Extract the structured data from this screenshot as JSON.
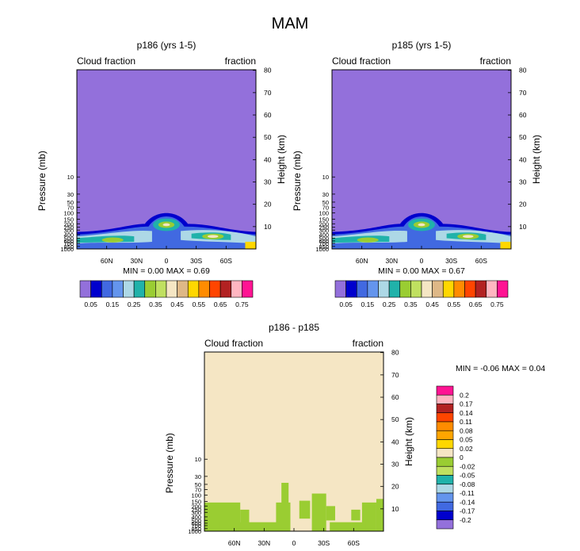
{
  "figure_title": "MAM",
  "colors": {
    "background_top": "#9370DB",
    "background_diff": "#F5E6C4",
    "diff_patch": "#9ACD32",
    "frame": "#000000"
  },
  "chart_data": [
    {
      "type": "contour",
      "title": "p186 (yrs 1-5)",
      "left_string": "Cloud fraction",
      "right_string": "fraction",
      "ylabel": "Pressure (mb)",
      "ylabel_right": "Height (km)",
      "x_ticks": [
        "60N",
        "30N",
        "0",
        "30S",
        "60S"
      ],
      "x_tick_lats": [
        60,
        30,
        0,
        -30,
        -60
      ],
      "xlim": [
        90,
        -90
      ],
      "pressure_ticks": [
        "10",
        "30",
        "50",
        "70",
        "100",
        "150",
        "200",
        "250",
        "300",
        "400",
        "500",
        "600",
        "700",
        "850",
        "1000"
      ],
      "pressure_values": [
        10,
        30,
        50,
        70,
        100,
        150,
        200,
        250,
        300,
        400,
        500,
        600,
        700,
        850,
        1000
      ],
      "height_ticks": [
        "10",
        "20",
        "30",
        "40",
        "50",
        "60",
        "70",
        "80"
      ],
      "height_values": [
        10,
        20,
        30,
        40,
        50,
        60,
        70,
        80
      ],
      "stats_text": "MIN =   0.00   MAX =   0.69",
      "min": 0.0,
      "max": 0.69,
      "colorbar": {
        "labels": [
          "0.05",
          "0.15",
          "0.25",
          "0.35",
          "0.45",
          "0.55",
          "0.65",
          "0.75"
        ],
        "colors": [
          "#9370DB",
          "#0000CD",
          "#4169E1",
          "#6495ED",
          "#ADD8E6",
          "#20B2AA",
          "#9ACD32",
          "#C0E060",
          "#F5E6C4",
          "#DEB887",
          "#FFD700",
          "#FF8C00",
          "#FF4500",
          "#B22222",
          "#FFB6C1",
          "#FF1493"
        ]
      }
    },
    {
      "type": "contour",
      "title": "p185 (yrs 1-5)",
      "left_string": "Cloud fraction",
      "right_string": "fraction",
      "ylabel": "Pressure (mb)",
      "ylabel_right": "Height (km)",
      "x_ticks": [
        "60N",
        "30N",
        "0",
        "30S",
        "60S"
      ],
      "x_tick_lats": [
        60,
        30,
        0,
        -30,
        -60
      ],
      "xlim": [
        90,
        -90
      ],
      "pressure_ticks": [
        "10",
        "30",
        "50",
        "70",
        "100",
        "150",
        "200",
        "250",
        "300",
        "400",
        "500",
        "600",
        "700",
        "850",
        "1000"
      ],
      "pressure_values": [
        10,
        30,
        50,
        70,
        100,
        150,
        200,
        250,
        300,
        400,
        500,
        600,
        700,
        850,
        1000
      ],
      "height_ticks": [
        "10",
        "20",
        "30",
        "40",
        "50",
        "60",
        "70",
        "80"
      ],
      "height_values": [
        10,
        20,
        30,
        40,
        50,
        60,
        70,
        80
      ],
      "stats_text": "MIN =   0.00   MAX =   0.67",
      "min": 0.0,
      "max": 0.67,
      "colorbar": {
        "labels": [
          "0.05",
          "0.15",
          "0.25",
          "0.35",
          "0.45",
          "0.55",
          "0.65",
          "0.75"
        ],
        "colors": [
          "#9370DB",
          "#0000CD",
          "#4169E1",
          "#6495ED",
          "#ADD8E6",
          "#20B2AA",
          "#9ACD32",
          "#C0E060",
          "#F5E6C4",
          "#DEB887",
          "#FFD700",
          "#FF8C00",
          "#FF4500",
          "#B22222",
          "#FFB6C1",
          "#FF1493"
        ]
      }
    },
    {
      "type": "contour",
      "title": "p186 - p185",
      "left_string": "Cloud fraction",
      "right_string": "fraction",
      "ylabel": "Pressure (mb)",
      "ylabel_right": "Height (km)",
      "x_ticks": [
        "60N",
        "30N",
        "0",
        "30S",
        "60S"
      ],
      "x_tick_lats": [
        60,
        30,
        0,
        -30,
        -60
      ],
      "xlim": [
        90,
        -90
      ],
      "pressure_ticks": [
        "10",
        "30",
        "50",
        "70",
        "100",
        "150",
        "200",
        "250",
        "300",
        "400",
        "500",
        "600",
        "700",
        "850",
        "1000"
      ],
      "pressure_values": [
        10,
        30,
        50,
        70,
        100,
        150,
        200,
        250,
        300,
        400,
        500,
        600,
        700,
        850,
        1000
      ],
      "height_ticks": [
        "10",
        "20",
        "30",
        "40",
        "50",
        "60",
        "70",
        "80"
      ],
      "height_values": [
        10,
        20,
        30,
        40,
        50,
        60,
        70,
        80
      ],
      "stats_text": "MIN =  -0.06   MAX =   0.04",
      "min": -0.06,
      "max": 0.04,
      "colorbar": {
        "labels": [
          "0.2",
          "0.17",
          "0.14",
          "0.11",
          "0.08",
          "0.05",
          "0.02",
          "0",
          "-0.02",
          "-0.05",
          "-0.08",
          "-0.11",
          "-0.14",
          "-0.17",
          "-0.2"
        ],
        "colors": [
          "#FF1493",
          "#FFB6C1",
          "#B22222",
          "#FF4500",
          "#FF8C00",
          "#FFA500",
          "#FFD700",
          "#F5E6C4",
          "#9ACD32",
          "#C0E060",
          "#20B2AA",
          "#ADD8E6",
          "#6495ED",
          "#4169E1",
          "#0000CD",
          "#9370DB"
        ]
      }
    }
  ]
}
